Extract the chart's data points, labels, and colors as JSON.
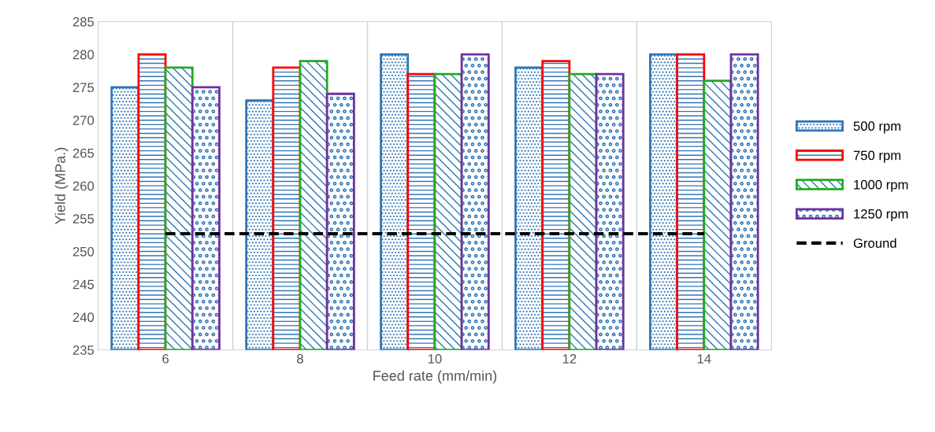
{
  "chart_data": {
    "type": "bar",
    "xlabel": "Feed rate (mm/min)",
    "ylabel": "Yield (MPa.)",
    "categories": [
      "6",
      "8",
      "10",
      "12",
      "14"
    ],
    "series": [
      {
        "name": "500 rpm",
        "color": "#2e75b6",
        "values": [
          275,
          273,
          280,
          278,
          280
        ]
      },
      {
        "name": "750 rpm",
        "color": "#ff0000",
        "values": [
          280,
          278,
          277,
          279,
          280
        ]
      },
      {
        "name": "1000 rpm",
        "color": "#22aa22",
        "values": [
          278,
          279,
          277,
          277,
          276
        ]
      },
      {
        "name": "1250 rpm",
        "color": "#7030a0",
        "values": [
          275,
          274,
          280,
          277,
          280
        ]
      },
      {
        "name": "Ground",
        "type": "line",
        "color": "#000000",
        "line_style": "dashed",
        "values": [
          252.7,
          252.7,
          252.7,
          252.7,
          252.7
        ]
      }
    ],
    "ylim": [
      235,
      285
    ],
    "yticks": [
      235,
      240,
      245,
      250,
      255,
      260,
      265,
      270,
      275,
      280,
      285
    ],
    "grid": "x",
    "legend": "right"
  }
}
